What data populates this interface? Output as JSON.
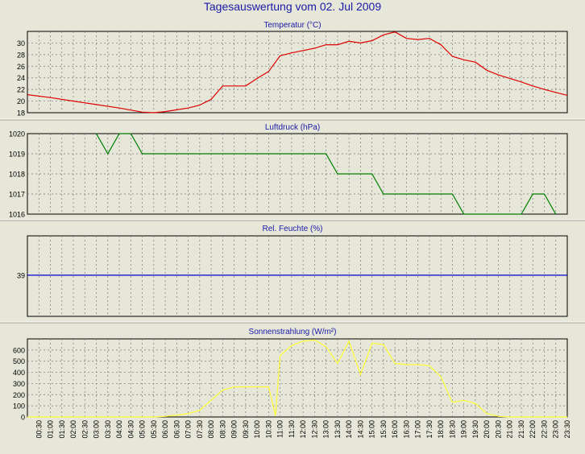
{
  "page": {
    "title": "Tagesauswertung vom 02. Jul 2009"
  },
  "colors": {
    "background": "#e6e6d9",
    "plot_background": "#e6e6d9",
    "title_text": "#1a1aa8",
    "temperature": "#e00000",
    "pressure": "#008000",
    "humidity": "#0000cc",
    "radiation": "#ffff33",
    "grid": "#777777"
  },
  "x_ticks": [
    "00:30",
    "01:00",
    "01:30",
    "02:00",
    "02:30",
    "03:00",
    "03:30",
    "04:00",
    "04:30",
    "05:00",
    "05:30",
    "06:00",
    "06:30",
    "07:00",
    "07:30",
    "08:00",
    "08:30",
    "09:00",
    "09:30",
    "10:00",
    "10:30",
    "11:00",
    "11:30",
    "12:00",
    "12:30",
    "13:00",
    "13:30",
    "14:00",
    "14:30",
    "15:00",
    "15:30",
    "16:00",
    "16:30",
    "17:00",
    "17:30",
    "18:00",
    "18:30",
    "19:00",
    "19:30",
    "20:00",
    "20:30",
    "21:00",
    "21:30",
    "22:00",
    "22:30",
    "23:00",
    "23:30"
  ],
  "chart_data": [
    {
      "type": "line",
      "title": "Temperatur (°C)",
      "grid": true,
      "ylim": [
        18,
        32
      ],
      "yticks": [
        18,
        20,
        22,
        24,
        26,
        28,
        30
      ],
      "x_hours": [
        0.0,
        1.0,
        2.0,
        3.0,
        4.0,
        5.0,
        5.5,
        6.0,
        6.5,
        7.0,
        7.5,
        8.0,
        8.5,
        9.0,
        9.5,
        10.0,
        10.5,
        11.0,
        11.5,
        12.0,
        12.5,
        13.0,
        13.5,
        14.0,
        14.5,
        15.0,
        15.5,
        16.0,
        16.5,
        17.0,
        17.5,
        18.0,
        18.5,
        19.0,
        19.5,
        20.0,
        20.5,
        21.0,
        21.5,
        22.0,
        22.5,
        23.0,
        23.5
      ],
      "series": [
        {
          "values": [
            21.1,
            20.6,
            20.0,
            19.4,
            18.8,
            18.1,
            18.0,
            18.2,
            18.5,
            18.8,
            19.3,
            20.3,
            22.6,
            22.6,
            22.6,
            23.9,
            25.1,
            27.8,
            28.3,
            28.7,
            29.1,
            29.7,
            29.7,
            30.3,
            30.0,
            30.4,
            31.4,
            31.9,
            30.8,
            30.6,
            30.8,
            29.7,
            27.7,
            27.1,
            26.7,
            25.3,
            24.5,
            23.9,
            23.3,
            22.6,
            22.0,
            21.5,
            21.0
          ]
        }
      ]
    },
    {
      "type": "line",
      "title": "Luftdruck (hPa)",
      "grid": true,
      "ylim": [
        1016,
        1020
      ],
      "yticks": [
        1016,
        1017,
        1018,
        1019,
        1020
      ],
      "x_hours": [
        3.0,
        3.5,
        4.0,
        4.5,
        5.0,
        13.0,
        13.5,
        15.0,
        15.5,
        18.5,
        19.0,
        21.5,
        22.0,
        22.5,
        23.0
      ],
      "series": [
        {
          "values": [
            1020,
            1019,
            1020,
            1020,
            1019,
            1019,
            1018,
            1018,
            1017,
            1017,
            1016,
            1016,
            1017,
            1017,
            1016
          ]
        }
      ]
    },
    {
      "type": "line",
      "title": "Rel. Feuchte (%)",
      "grid": true,
      "yticks": [
        39
      ],
      "ylim": [
        34.3,
        43.5
      ],
      "x_hours": [
        0.0,
        23.5
      ],
      "series": [
        {
          "values": [
            39,
            39
          ]
        }
      ]
    },
    {
      "type": "line",
      "title": "Sonnenstrahlung (W/m²)",
      "grid": true,
      "ylim": [
        0,
        700
      ],
      "yticks": [
        0,
        100,
        200,
        300,
        400,
        500,
        600
      ],
      "x_hours": [
        0.0,
        5.0,
        5.5,
        6.0,
        6.5,
        7.0,
        7.5,
        8.0,
        8.5,
        9.0,
        9.5,
        10.0,
        10.5,
        10.8,
        11.0,
        11.5,
        12.0,
        12.5,
        13.0,
        13.5,
        14.0,
        14.5,
        15.0,
        15.5,
        16.0,
        16.5,
        17.0,
        17.5,
        18.0,
        18.5,
        19.0,
        19.5,
        20.0,
        20.5,
        21.0,
        23.5
      ],
      "series": [
        {
          "values": [
            0,
            0,
            0,
            5,
            15,
            30,
            60,
            150,
            240,
            270,
            270,
            270,
            270,
            10,
            550,
            640,
            680,
            690,
            630,
            480,
            680,
            380,
            660,
            650,
            480,
            470,
            470,
            460,
            360,
            130,
            150,
            120,
            30,
            5,
            0,
            0
          ]
        }
      ]
    }
  ]
}
